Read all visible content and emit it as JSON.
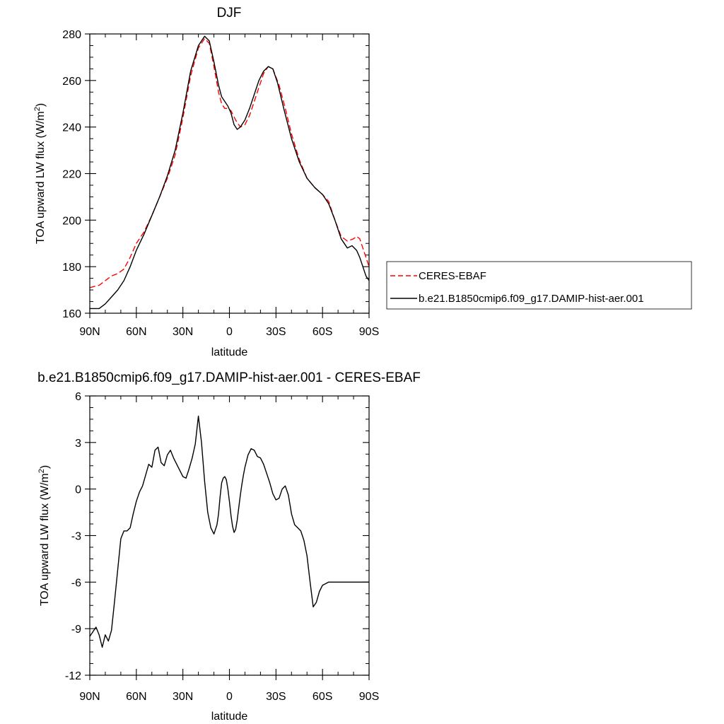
{
  "chart_data": [
    {
      "type": "line",
      "title": "DJF",
      "xlabel": "latitude",
      "ylabel": "TOA upward LW flux (W/m",
      "ylabel_sup": "2",
      "ylabel_end": ")",
      "xlim": [
        90,
        -90
      ],
      "ylim": [
        160,
        280
      ],
      "xticks": [
        90,
        60,
        30,
        0,
        -30,
        -60,
        -90
      ],
      "xticklabels": [
        "90N",
        "60N",
        "30N",
        "0",
        "30S",
        "60S",
        "90S"
      ],
      "yticks": [
        160,
        180,
        200,
        220,
        240,
        260,
        280
      ],
      "yticklabels": [
        "160",
        "180",
        "200",
        "220",
        "240",
        "260",
        "280"
      ],
      "legend_position": "right",
      "series": [
        {
          "name": "CERES-EBAF",
          "color": "#ff0000",
          "dash": "dashed",
          "x": [
            90,
            84,
            80,
            76,
            72,
            68,
            64,
            60,
            55,
            50,
            45,
            40,
            35,
            30,
            25,
            20,
            16,
            13,
            10,
            7,
            5,
            3,
            1,
            -1,
            -4,
            -7,
            -10,
            -13,
            -16,
            -19,
            -22,
            -25,
            -28,
            -32,
            -36,
            -40,
            -45,
            -50,
            -55,
            -60,
            -64,
            -68,
            -72,
            -76,
            -80,
            -82,
            -84,
            -86,
            -88,
            -90
          ],
          "y": [
            171,
            172,
            174,
            176,
            177,
            179,
            184,
            190,
            195,
            202,
            210,
            218,
            228,
            244,
            262,
            274,
            278,
            276,
            266,
            255,
            250,
            248,
            248,
            247,
            243,
            240,
            241,
            245,
            251,
            257,
            263,
            266,
            265,
            258,
            248,
            237,
            226,
            218,
            214,
            211,
            208,
            200,
            193,
            191,
            192,
            193,
            192,
            188,
            184,
            180
          ]
        },
        {
          "name": "b.e21.B1850cmip6.f09_g17.DAMIP-hist-aer.001",
          "color": "#000000",
          "dash": "solid",
          "x": [
            90,
            84,
            80,
            76,
            72,
            68,
            64,
            60,
            55,
            50,
            45,
            40,
            35,
            30,
            25,
            20,
            16,
            13,
            10,
            7,
            5,
            3,
            1,
            -1,
            -3,
            -5,
            -7,
            -10,
            -13,
            -16,
            -19,
            -22,
            -25,
            -28,
            -31,
            -35,
            -40,
            -45,
            -50,
            -55,
            -60,
            -64,
            -68,
            -72,
            -76,
            -79,
            -82,
            -84,
            -86,
            -88,
            -90
          ],
          "y": [
            162,
            162,
            164,
            167,
            170,
            174,
            180,
            187,
            194,
            202,
            210,
            219,
            230,
            246,
            264,
            275,
            279,
            277,
            268,
            258,
            253,
            251,
            249,
            246,
            241,
            239,
            240,
            243,
            248,
            254,
            260,
            264,
            266,
            265,
            259,
            248,
            235,
            225,
            218,
            214,
            211,
            207,
            200,
            192,
            188,
            189,
            187,
            184,
            180,
            176,
            174
          ]
        }
      ]
    },
    {
      "type": "line",
      "title": "b.e21.B1850cmip6.f09_g17.DAMIP-hist-aer.001 - CERES-EBAF",
      "xlabel": "latitude",
      "ylabel": "TOA upward LW flux (W/m",
      "ylabel_sup": "2",
      "ylabel_end": ")",
      "xlim": [
        90,
        -90
      ],
      "ylim": [
        -12,
        6
      ],
      "xticks": [
        90,
        60,
        30,
        0,
        -30,
        -60,
        -90
      ],
      "xticklabels": [
        "90N",
        "60N",
        "30N",
        "0",
        "30S",
        "60S",
        "90S"
      ],
      "yticks": [
        -12,
        -9,
        -6,
        -3,
        0,
        3,
        6
      ],
      "yticklabels": [
        "-12",
        "-9",
        "-6",
        "-3",
        "0",
        "3",
        "6"
      ],
      "series": [
        {
          "color": "#000000",
          "dash": "solid",
          "x": [
            90,
            86,
            84,
            82,
            80,
            78,
            76,
            74,
            72,
            70,
            68,
            66,
            64,
            62,
            60,
            58,
            56,
            54,
            52,
            50,
            48,
            46,
            44,
            42,
            40,
            38,
            36,
            34,
            32,
            30,
            28,
            26,
            24,
            22,
            20,
            18,
            16,
            14,
            12,
            10,
            8,
            7,
            6,
            5,
            4,
            3,
            2,
            1,
            0,
            -1,
            -2,
            -3,
            -4,
            -5,
            -6,
            -7,
            -8,
            -9,
            -10,
            -11,
            -12,
            -14,
            -16,
            -18,
            -20,
            -22,
            -24,
            -26,
            -28,
            -30,
            -32,
            -34,
            -36,
            -38,
            -40,
            -42,
            -44,
            -46,
            -48,
            -50,
            -52,
            -54,
            -56,
            -58,
            -60,
            -62,
            -64,
            -66,
            -68,
            -70,
            -72,
            -74,
            -76,
            -78,
            -80,
            -82,
            -84,
            -86,
            -87,
            -88,
            -89,
            -90
          ],
          "y": [
            -9.5,
            -8.9,
            -9.4,
            -10.2,
            -9.4,
            -9.8,
            -9.1,
            -7.2,
            -5.2,
            -3.2,
            -2.7,
            -2.7,
            -2.5,
            -1.6,
            -0.8,
            -0.2,
            0.2,
            0.9,
            1.6,
            1.4,
            2.5,
            2.7,
            1.7,
            1.5,
            2.2,
            2.5,
            2.0,
            1.6,
            1.2,
            0.8,
            0.7,
            1.3,
            2.0,
            2.9,
            4.7,
            3.0,
            0.5,
            -1.5,
            -2.5,
            -2.9,
            -2.3,
            -1.6,
            -0.5,
            0.4,
            0.7,
            0.8,
            0.6,
            0.0,
            -0.8,
            -1.7,
            -2.4,
            -2.8,
            -2.6,
            -2.0,
            -1.2,
            -0.4,
            0.3,
            0.9,
            1.4,
            1.8,
            2.2,
            2.6,
            2.5,
            2.1,
            2.0,
            1.6,
            1.0,
            0.4,
            -0.3,
            -0.7,
            -0.6,
            0.0,
            0.2,
            -0.4,
            -1.6,
            -2.3,
            -2.5,
            -2.7,
            -3.3,
            -4.3,
            -6.0,
            -7.6,
            -7.3,
            -6.6,
            -6.2,
            -6.1,
            -6.0,
            -6.0,
            -6.0,
            -6.0,
            -6.0,
            -6.0,
            -6.0,
            -6.0,
            -6.0,
            -6.0,
            -6.0,
            -6.0,
            -6.0,
            -6.0,
            -6.0,
            -6.0
          ]
        }
      ]
    }
  ]
}
